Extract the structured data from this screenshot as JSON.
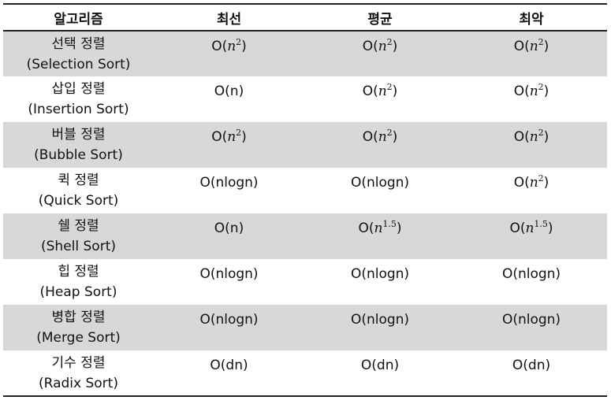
{
  "headers": [
    "알고리즘",
    "최선",
    "평균",
    "최악"
  ],
  "rows": [
    {
      "name_ko": "선택 정렬",
      "name_en": "(Selection Sort)",
      "best": {
        "prefix": "O(",
        "var": "n",
        "exp": "2",
        "suffix": ")"
      },
      "avg": {
        "prefix": "O(",
        "var": "n",
        "exp": "2",
        "suffix": ")"
      },
      "worst": {
        "prefix": "O(",
        "var": "n",
        "exp": "2",
        "suffix": ")"
      }
    },
    {
      "name_ko": "삽입 정렬",
      "name_en": "(Insertion Sort)",
      "best": {
        "prefix": "O(n)",
        "var": "",
        "exp": "",
        "suffix": ""
      },
      "avg": {
        "prefix": "O(",
        "var": "n",
        "exp": "2",
        "suffix": ")"
      },
      "worst": {
        "prefix": "O(",
        "var": "n",
        "exp": "2",
        "suffix": ")"
      }
    },
    {
      "name_ko": "버블 정렬",
      "name_en": "(Bubble Sort)",
      "best": {
        "prefix": "O(",
        "var": "n",
        "exp": "2",
        "suffix": ")"
      },
      "avg": {
        "prefix": "O(",
        "var": "n",
        "exp": "2",
        "suffix": ")"
      },
      "worst": {
        "prefix": "O(",
        "var": "n",
        "exp": "2",
        "suffix": ")"
      }
    },
    {
      "name_ko": "퀵 정렬",
      "name_en": "(Quick Sort)",
      "best": {
        "prefix": "O(nlogn)",
        "var": "",
        "exp": "",
        "suffix": ""
      },
      "avg": {
        "prefix": "O(nlogn)",
        "var": "",
        "exp": "",
        "suffix": ""
      },
      "worst": {
        "prefix": "O(",
        "var": "n",
        "exp": "2",
        "suffix": ")"
      }
    },
    {
      "name_ko": "쉘 정렬",
      "name_en": "(Shell Sort)",
      "best": {
        "prefix": "O(n)",
        "var": "",
        "exp": "",
        "suffix": ""
      },
      "avg": {
        "prefix": "O(",
        "var": "n",
        "exp": "1.5",
        "suffix": ")"
      },
      "worst": {
        "prefix": "O(",
        "var": "n",
        "exp": "1.5",
        "suffix": ")"
      }
    },
    {
      "name_ko": "힙 정렬",
      "name_en": "(Heap Sort)",
      "best": {
        "prefix": "O(nlogn)",
        "var": "",
        "exp": "",
        "suffix": ""
      },
      "avg": {
        "prefix": "O(nlogn)",
        "var": "",
        "exp": "",
        "suffix": ""
      },
      "worst": {
        "prefix": "O(nlogn)",
        "var": "",
        "exp": "",
        "suffix": ""
      }
    },
    {
      "name_ko": "병합 정렬",
      "name_en": "(Merge Sort)",
      "best": {
        "prefix": "O(nlogn)",
        "var": "",
        "exp": "",
        "suffix": ""
      },
      "avg": {
        "prefix": "O(nlogn)",
        "var": "",
        "exp": "",
        "suffix": ""
      },
      "worst": {
        "prefix": "O(nlogn)",
        "var": "",
        "exp": "",
        "suffix": ""
      }
    },
    {
      "name_ko": "기수 정렬",
      "name_en": "(Radix Sort)",
      "best": {
        "prefix": "O(dn)",
        "var": "",
        "exp": "",
        "suffix": ""
      },
      "avg": {
        "prefix": "O(dn)",
        "var": "",
        "exp": "",
        "suffix": ""
      },
      "worst": {
        "prefix": "O(dn)",
        "var": "",
        "exp": "",
        "suffix": ""
      }
    }
  ],
  "colors": {
    "shaded_row": "#d8d8d8",
    "rule": "#222222",
    "text": "#111111"
  }
}
